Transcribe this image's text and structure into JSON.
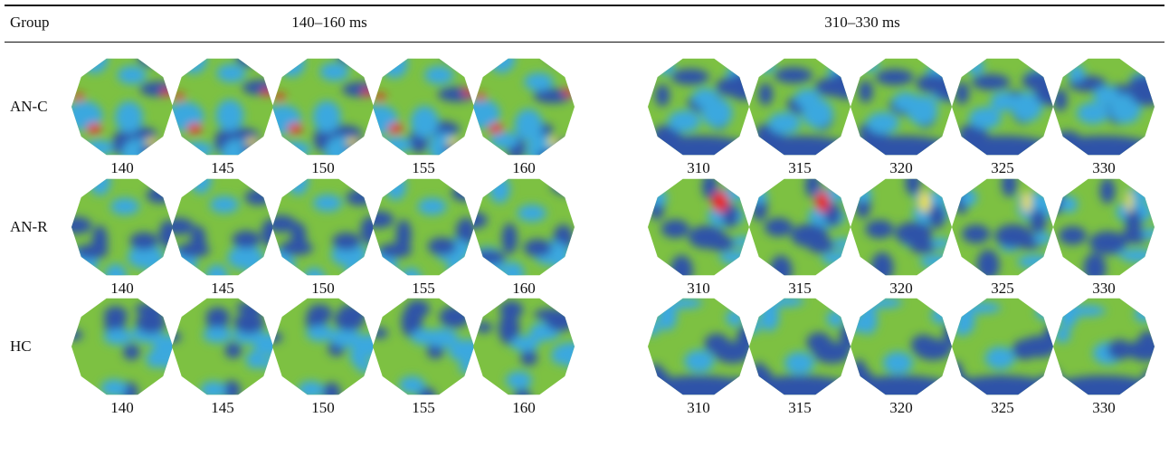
{
  "table": {
    "header": {
      "group_label": "Group",
      "windows": [
        "140–160 ms",
        "310–330 ms"
      ]
    },
    "rows": [
      {
        "group": "AN-C",
        "panels": [
          {
            "times": [
              "140",
              "145",
              "150",
              "155",
              "160"
            ]
          },
          {
            "times": [
              "310",
              "315",
              "320",
              "325",
              "330"
            ]
          }
        ]
      },
      {
        "group": "AN-R",
        "panels": [
          {
            "times": [
              "140",
              "145",
              "150",
              "155",
              "160"
            ]
          },
          {
            "times": [
              "310",
              "315",
              "320",
              "325",
              "330"
            ]
          }
        ]
      },
      {
        "group": "HC",
        "panels": [
          {
            "times": [
              "140",
              "145",
              "150",
              "155",
              "160"
            ]
          },
          {
            "times": [
              "310",
              "315",
              "320",
              "325",
              "330"
            ]
          }
        ]
      }
    ]
  },
  "colormap": {
    "base": "#7dc142",
    "low": "#2d52a8",
    "mid_low": "#3aa8df",
    "high": "#f2e21a",
    "peak": "#e8271d"
  }
}
